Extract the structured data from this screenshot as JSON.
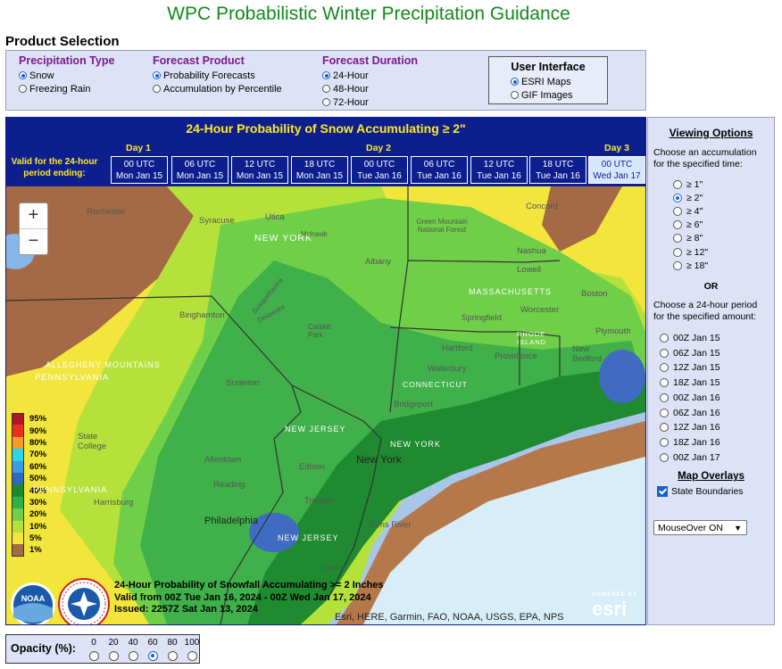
{
  "page_title": "WPC Probabilistic Winter Precipitation Guidance",
  "product_selection": {
    "label": "Product Selection",
    "precipitation_type": {
      "heading": "Precipitation Type",
      "options": [
        "Snow",
        "Freezing Rain"
      ],
      "selected": "Snow"
    },
    "forecast_product": {
      "heading": "Forecast Product",
      "options": [
        "Probability Forecasts",
        "Accumulation by Percentile"
      ],
      "selected": "Probability Forecasts"
    },
    "forecast_duration": {
      "heading": "Forecast Duration",
      "options": [
        "24-Hour",
        "48-Hour",
        "72-Hour"
      ],
      "selected": "24-Hour"
    },
    "user_interface": {
      "heading": "User Interface",
      "options": [
        "ESRI Maps",
        "GIF Images"
      ],
      "selected": "ESRI Maps"
    }
  },
  "map": {
    "header_title": "24-Hour Probability of Snow Accumulating ≥ 2\"",
    "valid_label_line1": "Valid for the 24-hour",
    "valid_label_line2": "period ending:",
    "days": [
      "Day 1",
      "Day 2",
      "Day 3"
    ],
    "times": [
      {
        "utc": "00 UTC",
        "date": "Mon Jan 15"
      },
      {
        "utc": "06 UTC",
        "date": "Mon Jan 15"
      },
      {
        "utc": "12 UTC",
        "date": "Mon Jan 15"
      },
      {
        "utc": "18 UTC",
        "date": "Mon Jan 15"
      },
      {
        "utc": "00 UTC",
        "date": "Tue Jan 16"
      },
      {
        "utc": "06 UTC",
        "date": "Tue Jan 16"
      },
      {
        "utc": "12 UTC",
        "date": "Tue Jan 16"
      },
      {
        "utc": "18 UTC",
        "date": "Tue Jan 16"
      },
      {
        "utc": "00 UTC",
        "date": "Wed Jan 17"
      }
    ],
    "active_time_index": 8,
    "zoom_in": "+",
    "zoom_out": "−",
    "legend": [
      {
        "label": "95%",
        "color": "#b0162a"
      },
      {
        "label": "90%",
        "color": "#e8311d"
      },
      {
        "label": "80%",
        "color": "#f59a2b"
      },
      {
        "label": "70%",
        "color": "#2ad6e6"
      },
      {
        "label": "60%",
        "color": "#3c9ae6"
      },
      {
        "label": "50%",
        "color": "#2f68c0"
      },
      {
        "label": "40%",
        "color": "#1c8a2c"
      },
      {
        "label": "30%",
        "color": "#31b04a"
      },
      {
        "label": "20%",
        "color": "#6fcf48"
      },
      {
        "label": "10%",
        "color": "#b4e23a"
      },
      {
        "label": "5%",
        "color": "#f2e53c"
      },
      {
        "label": "1%",
        "color": "#a46a45"
      }
    ],
    "place_labels": {
      "rochester": "Rochester",
      "syracuse": "Syracuse",
      "utica": "Utica",
      "new_york_state": "NEW YORK",
      "mohawk": "Mohawk",
      "albany": "Albany",
      "green_mountain": "Green Mountain National Forest",
      "concord": "Concord",
      "nashua": "Nashua",
      "lowell": "Lowell",
      "massachusetts": "MASSACHUSETTS",
      "boston": "Boston",
      "worcester": "Worcester",
      "springfield": "Springfield",
      "binghamton": "Binghamton",
      "catskill": "Catskill Park",
      "susquehanna": "Susquehanna",
      "delaware": "Delaware",
      "hartford": "Hartford",
      "rhode_island": "RHODE ISLAND",
      "providence": "Providence",
      "plymouth": "Plymouth",
      "waterbury": "Waterbury",
      "connecticut": "CONNECTICUT",
      "new_bedford": "New Bedford",
      "allegheny": "ALLEGHENY MOUNTAINS",
      "pennsylvania_n": "PENNSYLVANIA",
      "scranton": "Scranton",
      "bridgeport": "Bridgeport",
      "new_jersey_n": "NEW JERSEY",
      "new_york_li": "NEW YORK",
      "state_college": "State College",
      "allentown": "Allentown",
      "edison": "Edison",
      "new_york_city": "New York",
      "pennsylvania_s": "PENNSYLVANIA",
      "reading": "Reading",
      "trenton": "Trenton",
      "harrisburg": "Harrisburg",
      "philadelphia": "Philadelphia",
      "toms_river": "Toms River",
      "new_jersey_s": "NEW JERSEY",
      "atlantic": "Atlantic"
    },
    "caption_line1": "24-Hour Probability of Snowfall Accumulating >= 2 Inches",
    "caption_line2": "Valid from 00Z Tue Jan 16, 2024 - 00Z Wed Jan 17, 2024",
    "caption_line3": "Issued: 2257Z Sat Jan 13, 2024",
    "attribution": "Esri, HERE, Garmin, FAO, NOAA, USGS, EPA, NPS",
    "esri_powered": "POWERED BY",
    "esri_logo": "esri",
    "noaa_logo": "NOAA",
    "nws_logo": "NATIONAL WEATHER SERVICE"
  },
  "viewing_options": {
    "heading": "Viewing Options",
    "accumulation_prompt": "Choose an accumulation for the specified time:",
    "accumulations": [
      "≥ 1\"",
      "≥ 2\"",
      "≥ 4\"",
      "≥ 6\"",
      "≥ 8\"",
      "≥ 12\"",
      "≥ 18\""
    ],
    "selected_accumulation": "≥ 2\"",
    "or_label": "OR",
    "period_prompt": "Choose a 24-hour period for the specified amount:",
    "periods": [
      "00Z Jan 15",
      "06Z Jan 15",
      "12Z Jan 15",
      "18Z Jan 15",
      "00Z Jan 16",
      "06Z Jan 16",
      "12Z Jan 16",
      "18Z Jan 16",
      "00Z Jan 17"
    ],
    "map_overlays_heading": "Map Overlays",
    "state_boundaries_label": "State Boundaries",
    "state_boundaries_checked": true,
    "mouseover_select": "MouseOver ON"
  },
  "opacity": {
    "label": "Opacity (%):",
    "options": [
      "0",
      "20",
      "40",
      "60",
      "80",
      "100"
    ],
    "selected": "60"
  }
}
